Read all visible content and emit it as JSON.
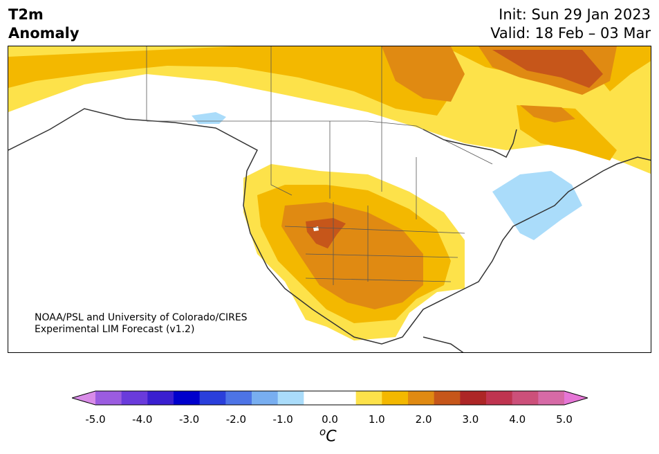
{
  "title": {
    "left_line1": "T2m",
    "left_line2": "Anomaly",
    "init": "Init: Sun 29 Jan 2023",
    "valid": "Valid: 18 Feb – 03 Mar"
  },
  "credit": {
    "line1": "NOAA/PSL and University of Colorado/CIRES",
    "line2": "Experimental LIM Forecast (v1.2)"
  },
  "colorbar": {
    "unit_base": "C",
    "unit_sup": "o",
    "ticks": [
      "-5.0",
      "-4.0",
      "-3.0",
      "-2.0",
      "-1.0",
      "0.0",
      "1.0",
      "2.0",
      "3.0",
      "4.0",
      "5.0"
    ],
    "colors": [
      "#d98ce8",
      "#9b5ce0",
      "#6a3bdb",
      "#3a1fd0",
      "#0000cc",
      "#2a3fdb",
      "#4d74e6",
      "#78aef0",
      "#aadcfa",
      "#ffffff",
      "#ffffff",
      "#fde24a",
      "#f3b800",
      "#e08a12",
      "#c6561a",
      "#ad2626",
      "#bf3450",
      "#cc507a",
      "#d66aa6",
      "#e676d6"
    ]
  },
  "map": {
    "region": "North America",
    "palette": {
      "yellow": "#fde24a",
      "gold": "#f3b800",
      "orange": "#e08a12",
      "dark_orange": "#c6561a",
      "light_blue": "#aadcfa"
    }
  }
}
